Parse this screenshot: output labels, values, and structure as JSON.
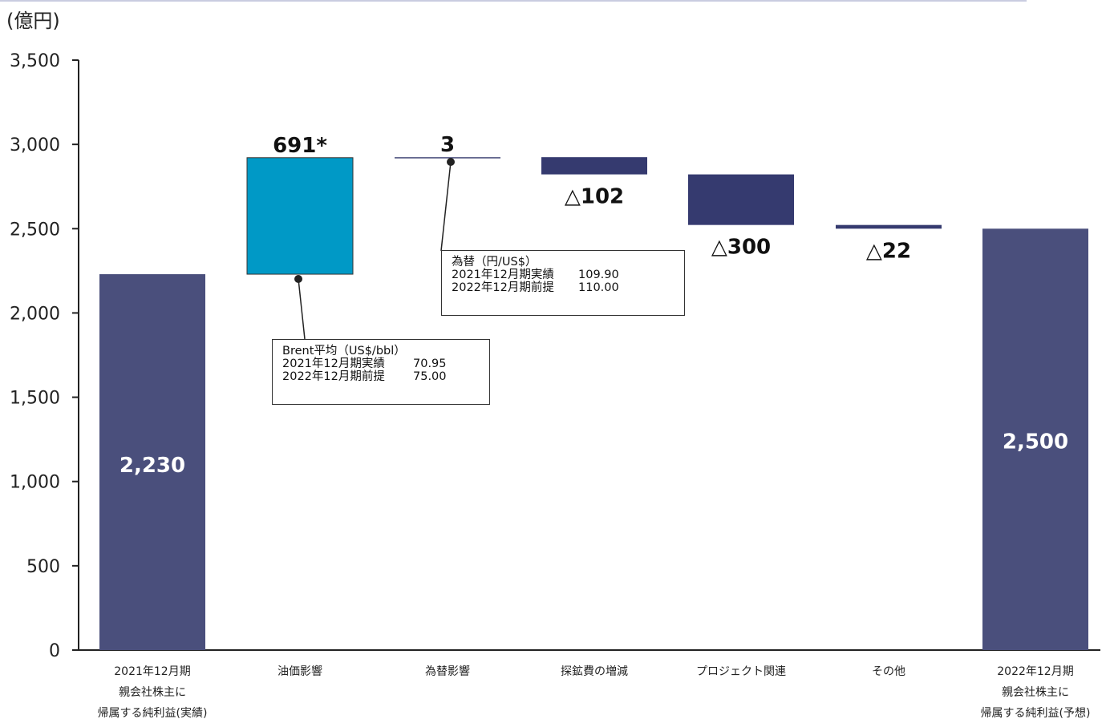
{
  "unit_label": "(億円)",
  "chart_data": {
    "type": "bar",
    "subtype": "waterfall",
    "ylim": [
      0,
      3500
    ],
    "y_ticks": [
      "0",
      "500",
      "1,000",
      "1,500",
      "2,000",
      "2,500",
      "3,000",
      "3,500"
    ],
    "y_tick_values": [
      0,
      500,
      1000,
      1500,
      2000,
      2500,
      3000,
      3500
    ],
    "grid": false,
    "categories": [
      [
        "2021年12月期",
        "親会社株主に",
        "帰属する純利益(実績)"
      ],
      [
        "油価影響"
      ],
      [
        "為替影響"
      ],
      [
        "探鉱費の増減"
      ],
      [
        "プロジェクト関連"
      ],
      [
        "その他"
      ],
      [
        "2022年12月期",
        "親会社株主に",
        "帰属する純利益(予想)"
      ]
    ],
    "bars": [
      {
        "kind": "total",
        "start": 0,
        "end": 2230,
        "label": "2,230",
        "color": "#4a4f7c"
      },
      {
        "kind": "delta",
        "start": 2230,
        "end": 2921,
        "label": "691*",
        "color": "#0099c6"
      },
      {
        "kind": "delta",
        "start": 2921,
        "end": 2924,
        "label": "3",
        "color": "#4a4f7c"
      },
      {
        "kind": "delta",
        "start": 2924,
        "end": 2822,
        "label": "△102",
        "color": "#353a6f"
      },
      {
        "kind": "delta",
        "start": 2822,
        "end": 2522,
        "label": "△300",
        "color": "#353a6f"
      },
      {
        "kind": "delta",
        "start": 2522,
        "end": 2500,
        "label": "△22",
        "color": "#353a6f"
      },
      {
        "kind": "total",
        "start": 0,
        "end": 2500,
        "label": "2,500",
        "color": "#4a4f7c"
      }
    ],
    "annotations": [
      {
        "title": "Brent平均（US$/bbl）",
        "rows": [
          {
            "label": "2021年12月期実績",
            "value": "70.95"
          },
          {
            "label": "2022年12月期前提",
            "value": "75.00"
          }
        ]
      },
      {
        "title": "為替（円/US$）",
        "rows": [
          {
            "label": "2021年12月期実績",
            "value": "109.90"
          },
          {
            "label": "2022年12月期前提",
            "value": "110.00"
          }
        ]
      }
    ]
  }
}
